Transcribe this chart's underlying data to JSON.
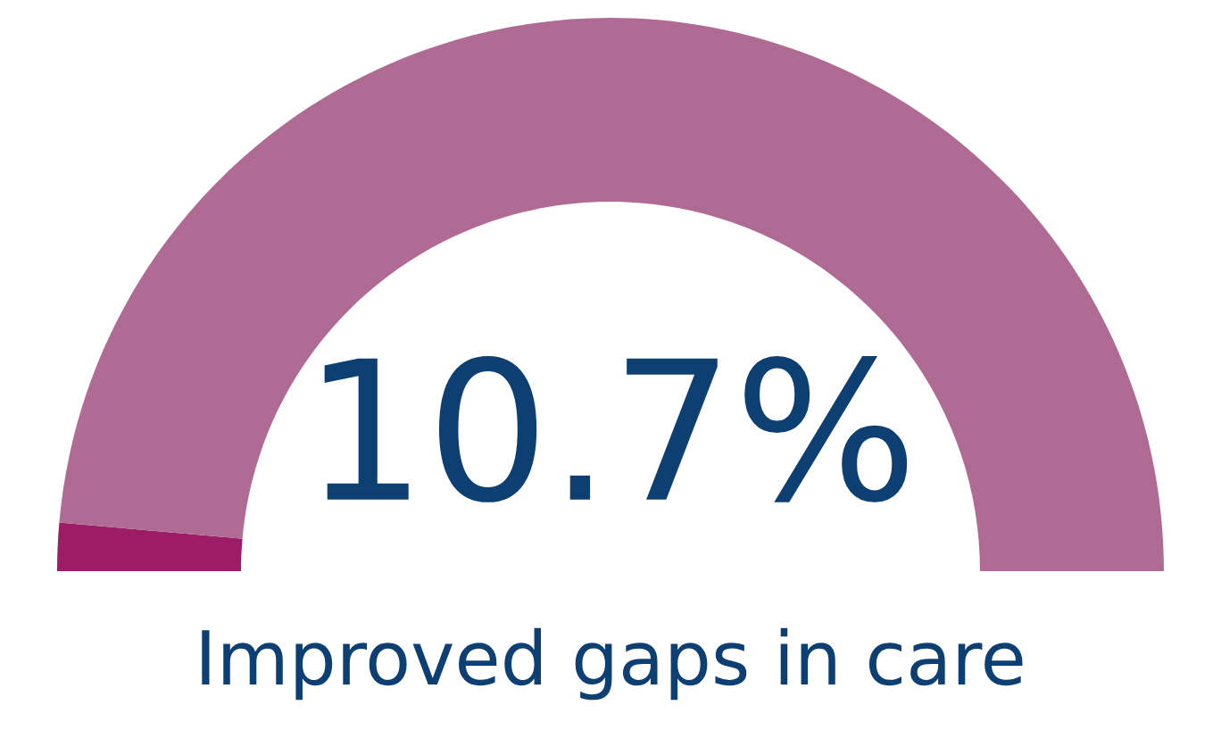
{
  "chart_data": {
    "type": "donut",
    "title": "10.7%",
    "subtitle": "Improved gaps in care",
    "categories": [
      null,
      null
    ],
    "values": [
      2.8,
      97.2
    ],
    "colors": [
      "#9c1d66",
      "#b06b94"
    ]
  }
}
